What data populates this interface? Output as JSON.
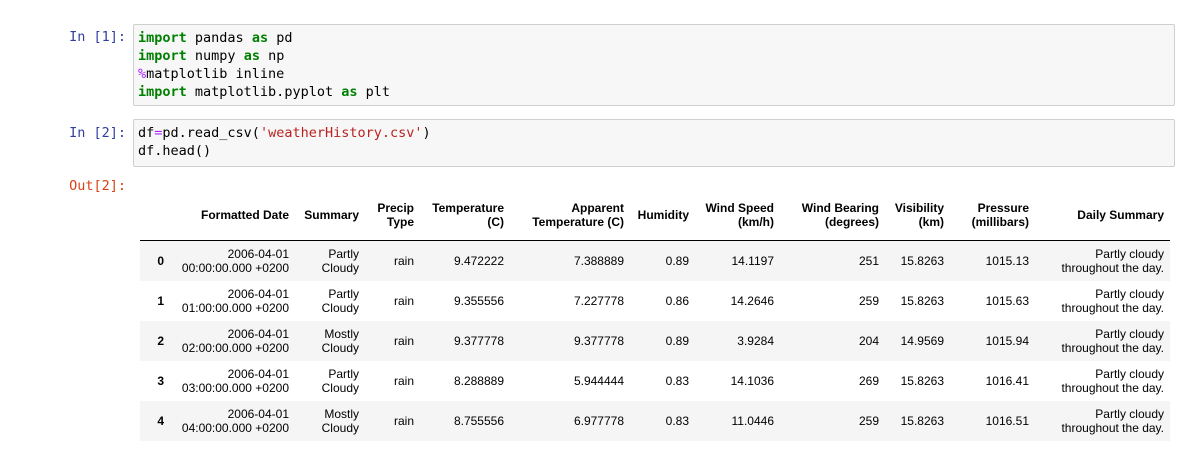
{
  "cells": [
    {
      "prompt": "In [1]:",
      "lines": [
        "import pandas as pd",
        "import numpy as np",
        "%matplotlib inline",
        "import matplotlib.pyplot as plt"
      ]
    },
    {
      "prompt": "In [2]:",
      "lines": [
        "df=pd.read_csv('weatherHistory.csv')",
        "df.head()"
      ],
      "output_prompt": "Out[2]:"
    }
  ],
  "table": {
    "columns": [
      "Formatted Date",
      "Summary",
      "Precip Type",
      "Temperature (C)",
      "Apparent Temperature (C)",
      "Humidity",
      "Wind Speed (km/h)",
      "Wind Bearing (degrees)",
      "Visibility (km)",
      "Pressure (millibars)",
      "Daily Summary"
    ],
    "rows": [
      [
        0,
        "2006-04-01 00:00:00.000 +0200",
        "Partly Cloudy",
        "rain",
        9.472222,
        7.388889,
        0.89,
        14.1197,
        251,
        15.8263,
        1015.13,
        "Partly cloudy throughout the day."
      ],
      [
        1,
        "2006-04-01 01:00:00.000 +0200",
        "Partly Cloudy",
        "rain",
        9.355556,
        7.227778,
        0.86,
        14.2646,
        259,
        15.8263,
        1015.63,
        "Partly cloudy throughout the day."
      ],
      [
        2,
        "2006-04-01 02:00:00.000 +0200",
        "Mostly Cloudy",
        "rain",
        9.377778,
        9.377778,
        0.89,
        3.9284,
        204,
        14.9569,
        1015.94,
        "Partly cloudy throughout the day."
      ],
      [
        3,
        "2006-04-01 03:00:00.000 +0200",
        "Partly Cloudy",
        "rain",
        8.288889,
        5.944444,
        0.83,
        14.1036,
        269,
        15.8263,
        1016.41,
        "Partly cloudy throughout the day."
      ],
      [
        4,
        "2006-04-01 04:00:00.000 +0200",
        "Mostly Cloudy",
        "rain",
        8.755556,
        6.977778,
        0.83,
        11.0446,
        259,
        15.8263,
        1016.51,
        "Partly cloudy throughout the day."
      ]
    ]
  }
}
